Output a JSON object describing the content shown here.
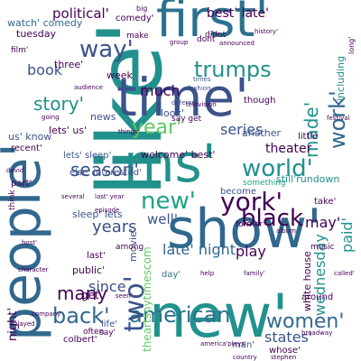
{
  "words": {
    "like": "like'",
    "first": "first'",
    "time": "time'",
    "show": "show'",
    "new": "new'",
    "people": "people'",
    "ms": "ms'",
    "york": "york'",
    "world": "world'",
    "american": "american",
    "back": "back'",
    "black": "black",
    "women": "women'",
    "trumps": "trumps",
    "way": "way'",
    "story": "story'",
    "work": "work'",
    "made": "made'",
    "year": "year'",
    "season": "season'",
    "years": "years",
    "many": "many",
    "late_night": "late' night",
    "two": "two'",
    "much": "much",
    "book": "book",
    "series": "series",
    "theater": "theater",
    "political": "political'",
    "best_late": "best' late'",
    "well": "well'",
    "play": "play",
    "wednesday": "wednesday",
    "states": "states'",
    "since": "since",
    "paid": "paid'",
    "welcome_best": "welcome' best'",
    "sleep_lets": "sleep' lets",
    "lets_sleep": "lets' sleep'",
    "may": "may'",
    "watch_comedy": "watch' comedy",
    "tuesday": "tuesday",
    "us_know": "us' know",
    "week": "week",
    "else_interested": "else' interested'",
    "look": "look'",
    "news": "news",
    "theartsnytimescom": "theartsnytimescom",
    "white_house": "white house",
    "night": "night'",
    "get": "get",
    "still_rundown": "still'rundown",
    "including": "including",
    "another": "another",
    "become": "become",
    "movie": "movie'",
    "public": "public'",
    "recent": "recent'",
    "part": "part'",
    "colbert": "colbert'",
    "life": "life'",
    "man": "man'",
    "day": "day'",
    "around": "around",
    "last": "last'",
    "whose": "whose'",
    "three": "three'",
    "little": "little",
    "something": "something",
    "think": "think",
    "dont": "dont",
    "among": "among",
    "film": "film'",
    "often": "often",
    "say": "say'",
    "take": "take'",
    "lets_us": "lets' us'",
    "music": "music",
    "former": "former",
    "say_get": "say get",
    "didnt": "didnt",
    "though": "though",
    "big": "big",
    "fashion": "fashion",
    "times": "times",
    "different": "different",
    "comedy_tiny": "comedy'",
    "history": "history'",
    "festival": "festival",
    "stephen": "stephen",
    "country": "country",
    "broadway": "broadway",
    "audience": "audience",
    "television": "television",
    "episode": "episode",
    "group": "group",
    "announced": "announced",
    "character": "character",
    "called": "called'",
    "help": "help",
    "family": "family'",
    "long": "long'",
    "make": "make",
    "things": "things'",
    "going": "going",
    "david": "david",
    "host": "host'",
    "played": "played",
    "album": "album",
    "seen": "seen'",
    "america_plays": "america'plays'",
    "last_year": "last' year",
    "several": "several",
    "company": "company"
  },
  "colors": {
    "purple": "#440154",
    "blue": "#3b528b",
    "steel": "#31688e",
    "teal": "#21918c",
    "teal_green": "#1fa187",
    "green": "#5ec962",
    "yellow_green": "#b5de2b"
  }
}
